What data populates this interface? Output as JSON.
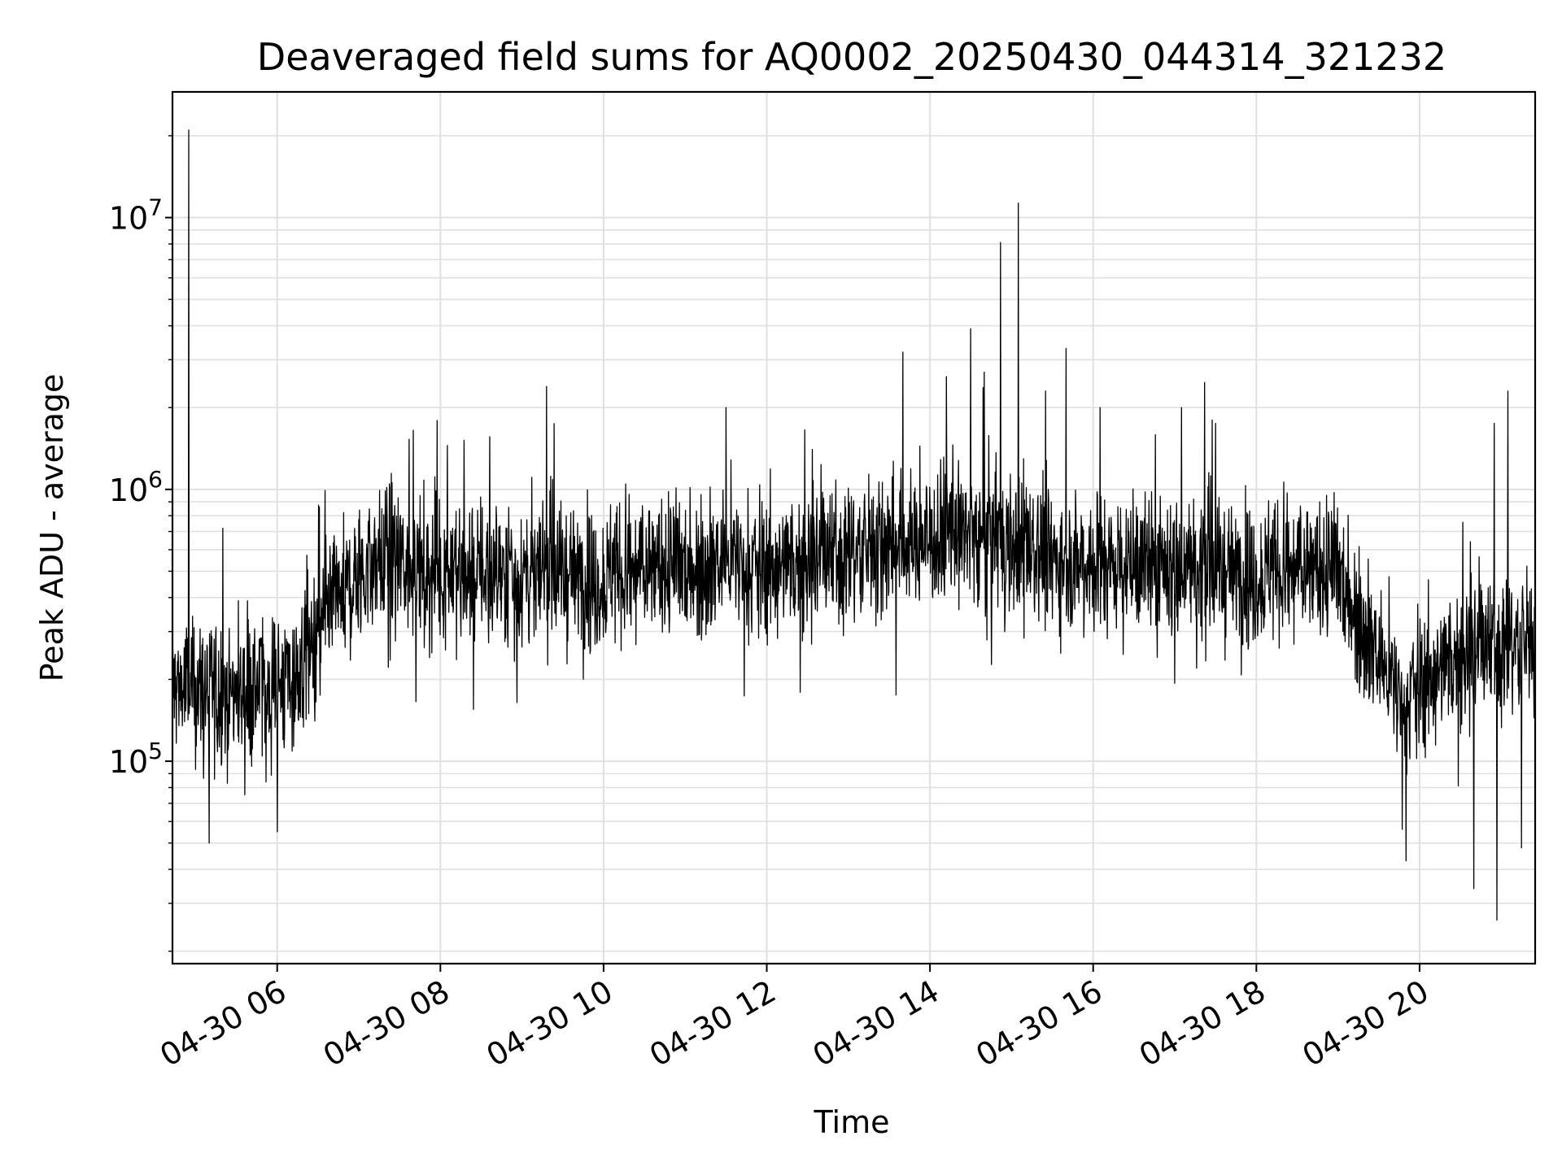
{
  "chart_data": {
    "type": "line",
    "title": "Deaveraged field sums for AQ0002_20250430_044314_321232",
    "xlabel": "Time",
    "ylabel": "Peak ADU - average",
    "yscale": "log",
    "grid": true,
    "x_range": [
      "04-30 04:43",
      "04-30 21:25"
    ],
    "ylim": [
      18000,
      29000000
    ],
    "x_tick_labels": [
      "04-30 06",
      "04-30 08",
      "04-30 10",
      "04-30 12",
      "04-30 14",
      "04-30 16",
      "04-30 18",
      "04-30 20"
    ],
    "y_tick_labels": [
      {
        "base": "10",
        "exp": "5",
        "value": 100000
      },
      {
        "base": "10",
        "exp": "6",
        "value": 1000000
      },
      {
        "base": "10",
        "exp": "7",
        "value": 10000000
      }
    ],
    "line_color": "#000000",
    "grid_color": "#e0e0e0",
    "series": [
      {
        "baseline_profile": [
          {
            "x": "04-30 04:45",
            "y": 190000
          },
          {
            "x": "04-30 05:30",
            "y": 180000
          },
          {
            "x": "04-30 06:15",
            "y": 200000
          },
          {
            "x": "04-30 06:45",
            "y": 400000
          },
          {
            "x": "04-30 07:15",
            "y": 560000
          },
          {
            "x": "04-30 08:00",
            "y": 500000
          },
          {
            "x": "04-30 10:00",
            "y": 480000
          },
          {
            "x": "04-30 11:30",
            "y": 550000
          },
          {
            "x": "04-30 12:00",
            "y": 520000
          },
          {
            "x": "04-30 13:30",
            "y": 620000
          },
          {
            "x": "04-30 14:30",
            "y": 700000
          },
          {
            "x": "04-30 15:30",
            "y": 560000
          },
          {
            "x": "04-30 17:30",
            "y": 500000
          },
          {
            "x": "04-30 19:00",
            "y": 500000
          },
          {
            "x": "04-30 19:45",
            "y": 170000
          },
          {
            "x": "04-30 20:30",
            "y": 250000
          },
          {
            "x": "04-30 21:25",
            "y": 280000
          }
        ],
        "spikes": [
          {
            "x": "04-30 04:55",
            "y": 21000000
          },
          {
            "x": "04-30 05:20",
            "y": 720000
          },
          {
            "x": "04-30 07:40",
            "y": 1650000
          },
          {
            "x": "04-30 08:05",
            "y": 1450000
          },
          {
            "x": "04-30 11:30",
            "y": 2000000
          },
          {
            "x": "04-30 13:40",
            "y": 3200000
          },
          {
            "x": "04-30 14:12",
            "y": 2600000
          },
          {
            "x": "04-30 14:30",
            "y": 3900000
          },
          {
            "x": "04-30 14:40",
            "y": 2700000
          },
          {
            "x": "04-30 14:52",
            "y": 8100000
          },
          {
            "x": "04-30 15:05",
            "y": 11300000
          },
          {
            "x": "04-30 15:25",
            "y": 2300000
          },
          {
            "x": "04-30 15:40",
            "y": 3300000
          },
          {
            "x": "04-30 16:05",
            "y": 2000000
          },
          {
            "x": "04-30 17:05",
            "y": 2000000
          },
          {
            "x": "04-30 17:30",
            "y": 1750000
          },
          {
            "x": "04-30 21:05",
            "y": 2300000
          },
          {
            "x": "04-30 20:55",
            "y": 1750000
          }
        ],
        "dips": [
          {
            "x": "04-30 05:10",
            "y": 50000
          },
          {
            "x": "04-30 06:00",
            "y": 55000
          },
          {
            "x": "04-30 19:50",
            "y": 43000
          },
          {
            "x": "04-30 20:40",
            "y": 34000
          },
          {
            "x": "04-30 20:57",
            "y": 26000
          },
          {
            "x": "04-30 21:15",
            "y": 48000
          }
        ]
      }
    ]
  }
}
